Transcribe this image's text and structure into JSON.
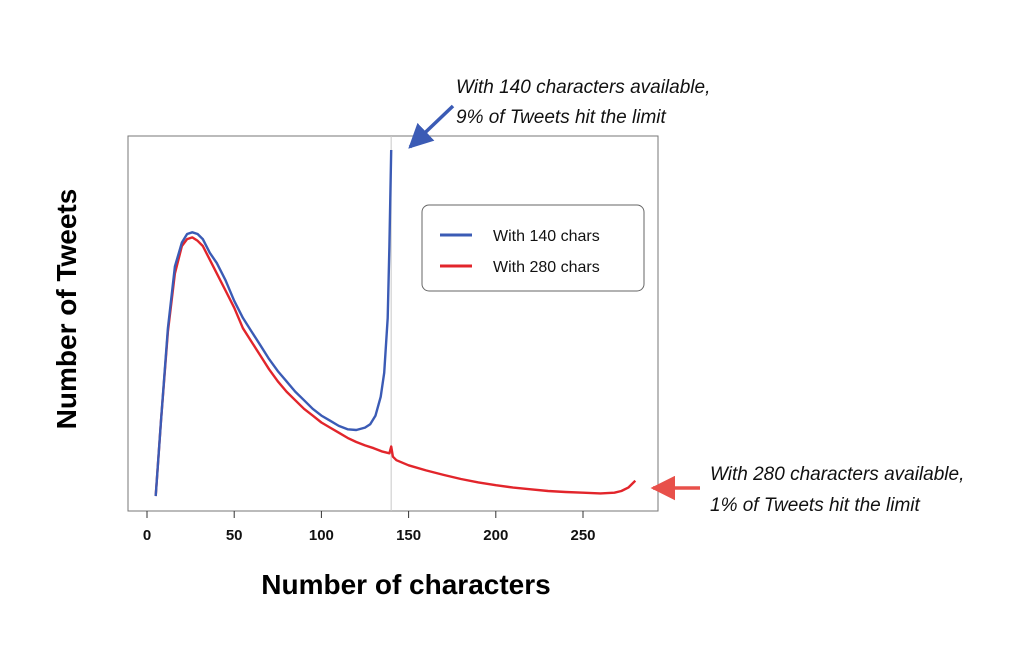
{
  "chart_data": {
    "type": "line",
    "xlabel": "Number of characters",
    "ylabel": "Number of Tweets",
    "xlim": [
      0,
      290
    ],
    "xticks": [
      0,
      50,
      100,
      150,
      200,
      250
    ],
    "y_ticks_shown": false,
    "grid": false,
    "legend_position": "right-center",
    "vertical_marker_x": 140,
    "series": [
      {
        "name": "With 140 chars",
        "color": "#3b5bb5",
        "x": [
          5,
          8,
          12,
          16,
          20,
          23,
          26,
          29,
          32,
          36,
          40,
          45,
          50,
          55,
          60,
          65,
          70,
          75,
          80,
          85,
          90,
          95,
          100,
          105,
          110,
          115,
          120,
          125,
          128,
          131,
          134,
          136,
          138,
          139,
          140
        ],
        "y": [
          2,
          24,
          51,
          69,
          76,
          78.5,
          79,
          78.5,
          77,
          73,
          70,
          65,
          59,
          54,
          50,
          46,
          42,
          38.5,
          35.5,
          32.5,
          30,
          27.5,
          25.5,
          24,
          22.5,
          21.5,
          21.3,
          22,
          23,
          25.5,
          31,
          38,
          54,
          75,
          103
        ]
      },
      {
        "name": "With 280 chars",
        "color": "#e2252b",
        "x": [
          5,
          8,
          12,
          16,
          20,
          23,
          26,
          29,
          32,
          36,
          40,
          45,
          50,
          55,
          60,
          65,
          70,
          75,
          80,
          85,
          90,
          95,
          100,
          105,
          110,
          115,
          120,
          125,
          130,
          135,
          139,
          140,
          141,
          143,
          150,
          160,
          170,
          180,
          190,
          200,
          210,
          220,
          230,
          240,
          250,
          260,
          268,
          272,
          276,
          280
        ],
        "y": [
          2,
          24,
          50,
          67,
          75,
          77,
          77.5,
          76.5,
          75,
          71,
          67,
          62,
          57,
          51,
          47,
          43,
          39,
          35.5,
          32.5,
          30,
          27.5,
          25.5,
          23.5,
          22,
          20.5,
          19,
          17.8,
          16.8,
          16,
          15,
          14.5,
          16.5,
          13.5,
          12.5,
          11,
          9.5,
          8.2,
          7,
          6,
          5.2,
          4.5,
          4,
          3.5,
          3.2,
          3,
          2.8,
          3,
          3.5,
          4.5,
          6.5
        ]
      }
    ],
    "legend": [
      "With 140 chars",
      "With 280 chars"
    ],
    "annotations": [
      {
        "lines": [
          "With 140 characters available,",
          "9% of Tweets hit the limit"
        ],
        "color": "#3b5bb5"
      },
      {
        "lines": [
          "With 280 characters available,",
          "1% of Tweets hit the limit"
        ],
        "color": "#e8504a"
      }
    ]
  }
}
